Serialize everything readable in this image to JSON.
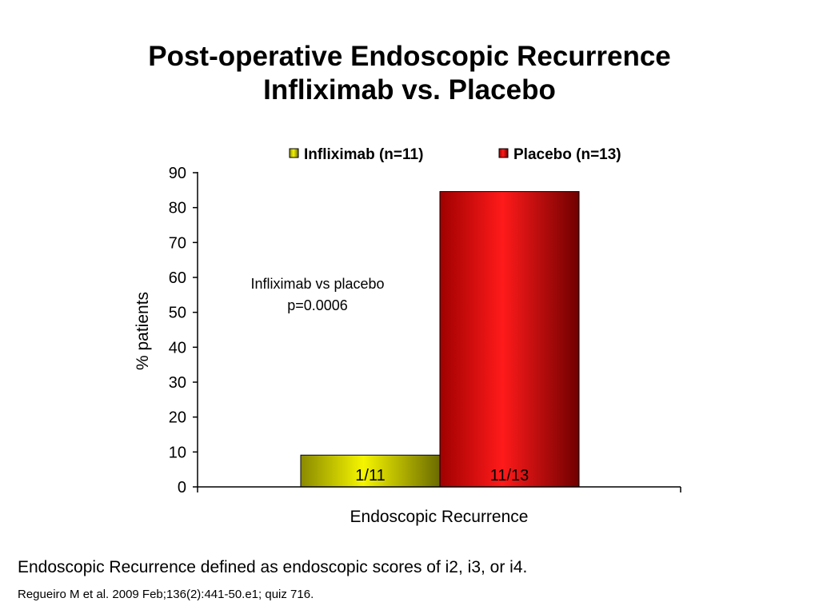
{
  "slide": {
    "title_line1": "Post-operative Endoscopic Recurrence",
    "title_line2": "Infliximab vs. Placebo",
    "footnote": "Endoscopic Recurrence defined as endoscopic scores of i2, i3, or i4.",
    "citation": "Regueiro M et al. 2009 Feb;136(2):441-50.e1; quiz 716."
  },
  "chart_data": {
    "type": "bar",
    "categories": [
      "Endoscopic Recurrence"
    ],
    "series": [
      {
        "name": "Infliximab (n=11)",
        "values": [
          9.1
        ],
        "bar_label": "1/11",
        "color_light": "#f5f500",
        "color_dark": "#6b6b00"
      },
      {
        "name": "Placebo (n=13)",
        "values": [
          84.6
        ],
        "bar_label": "11/13",
        "color_light": "#ff1a1a",
        "color_dark": "#700000"
      }
    ],
    "xlabel": "Endoscopic Recurrence",
    "ylabel": "% patients",
    "ylim": [
      0,
      90
    ],
    "yticks": [
      "0",
      "10",
      "20",
      "30",
      "40",
      "50",
      "60",
      "70",
      "80",
      "90"
    ],
    "annotation_line1": "Infliximab vs placebo",
    "annotation_line2": "p=0.0006",
    "legend_position": "top",
    "grid": false
  }
}
